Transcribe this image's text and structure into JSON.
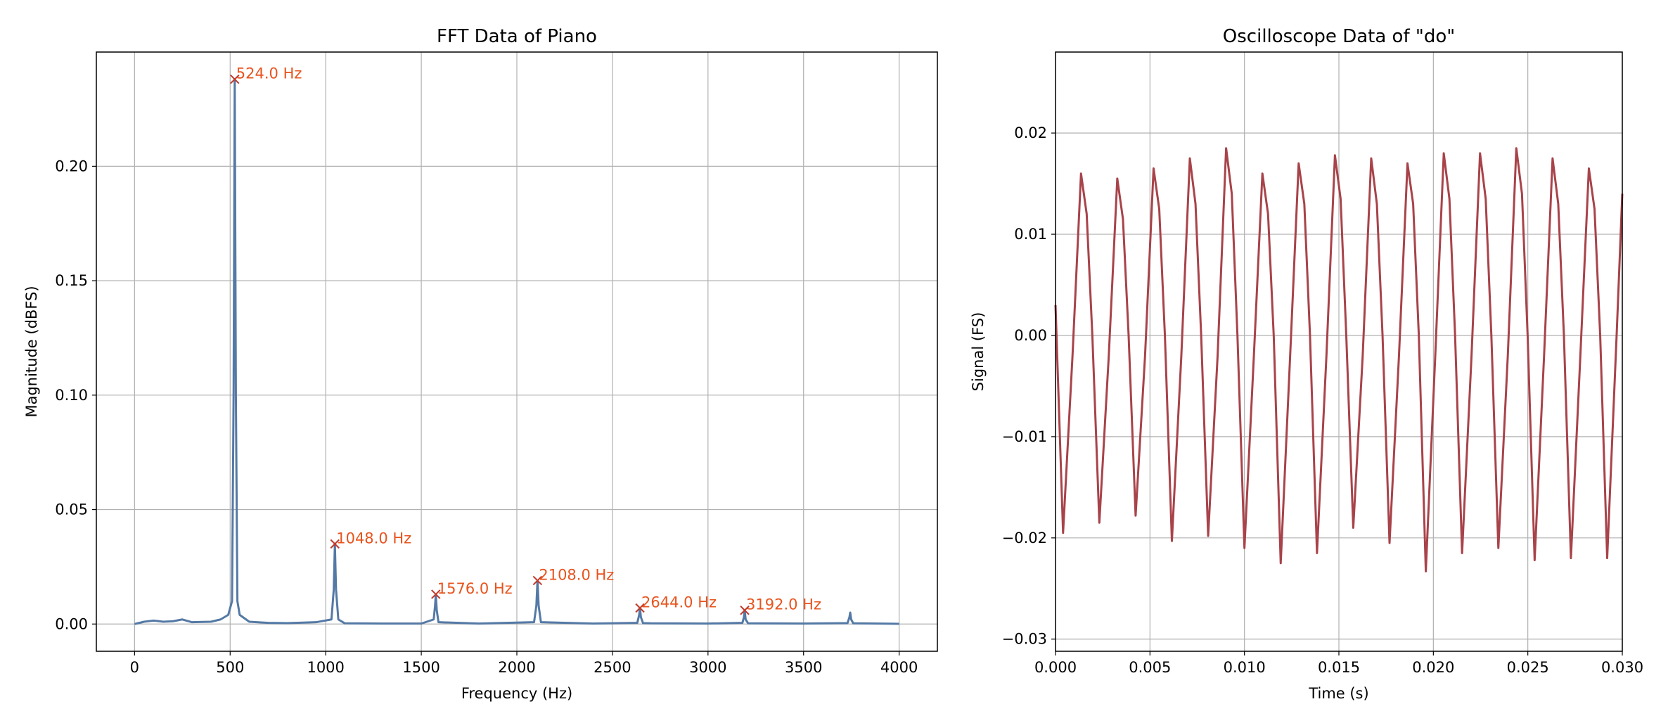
{
  "chart_data": [
    {
      "type": "line",
      "title": "FFT Data of Piano",
      "xlabel": "Frequency (Hz)",
      "ylabel": "Magnitude (dBFS)",
      "xlim": [
        -200,
        4200
      ],
      "ylim": [
        -0.0119,
        0.2499
      ],
      "grid": true,
      "xticks": [
        0,
        500,
        1000,
        1500,
        2000,
        2500,
        3000,
        3500,
        4000
      ],
      "yticks": [
        {
          "value": 0,
          "label": "0.00"
        },
        {
          "value": 0.05,
          "label": "0.05"
        },
        {
          "value": 0.1,
          "label": "0.10"
        },
        {
          "value": 0.15,
          "label": "0.15"
        },
        {
          "value": 0.2,
          "label": "0.20"
        }
      ],
      "series": [
        {
          "color": "#5479a5",
          "x": [
            0,
            50,
            100,
            150,
            200,
            250,
            300,
            400,
            450,
            490,
            510,
            518,
            524,
            530,
            538,
            550,
            600,
            700,
            800,
            950,
            1030,
            1042,
            1048,
            1054,
            1066,
            1100,
            1300,
            1500,
            1565,
            1572,
            1576,
            1581,
            1590,
            1800,
            2090,
            2102,
            2108,
            2114,
            2126,
            2400,
            2630,
            2640,
            2644,
            2649,
            2660,
            2700,
            3000,
            3180,
            3188,
            3192,
            3197,
            3210,
            3500,
            3730,
            3740,
            3744,
            3749,
            3760,
            4000
          ],
          "values": [
            0,
            0.001,
            0.0015,
            0.001,
            0.0012,
            0.002,
            0.0008,
            0.001,
            0.002,
            0.004,
            0.01,
            0.1,
            0.238,
            0.1,
            0.01,
            0.004,
            0.001,
            0.0005,
            0.0004,
            0.0008,
            0.002,
            0.015,
            0.035,
            0.015,
            0.002,
            0.0003,
            0.0002,
            0.0002,
            0.002,
            0.008,
            0.013,
            0.006,
            0.0008,
            0.0002,
            0.0008,
            0.008,
            0.019,
            0.008,
            0.0008,
            0.0002,
            0.0005,
            0.004,
            0.007,
            0.003,
            0.0004,
            0.0003,
            0.0002,
            0.0005,
            0.003,
            0.006,
            0.002,
            0.0003,
            0.0002,
            0.0004,
            0.003,
            0.005,
            0.002,
            0.0003,
            0.0001
          ]
        }
      ],
      "marker_color": "#c0392b",
      "annotation_color": "#e8541e",
      "annotations": [
        {
          "x": 524,
          "y": 0.238,
          "text": "524.0 Hz"
        },
        {
          "x": 1048,
          "y": 0.035,
          "text": "1048.0 Hz"
        },
        {
          "x": 1576,
          "y": 0.013,
          "text": "1576.0 Hz"
        },
        {
          "x": 2108,
          "y": 0.019,
          "text": "2108.0 Hz"
        },
        {
          "x": 2644,
          "y": 0.007,
          "text": "2644.0 Hz"
        },
        {
          "x": 3192,
          "y": 0.006,
          "text": "3192.0 Hz"
        }
      ]
    },
    {
      "type": "line",
      "title": "Oscilloscope Data of \"do\"",
      "xlabel": "Time (s)",
      "ylabel": "Signal (FS)",
      "xlim": [
        0,
        0.03
      ],
      "ylim": [
        -0.0312,
        0.028
      ],
      "grid": true,
      "xticks": [
        {
          "value": 0,
          "label": "0.000"
        },
        {
          "value": 0.005,
          "label": "0.005"
        },
        {
          "value": 0.01,
          "label": "0.010"
        },
        {
          "value": 0.015,
          "label": "0.015"
        },
        {
          "value": 0.02,
          "label": "0.020"
        },
        {
          "value": 0.025,
          "label": "0.025"
        },
        {
          "value": 0.03,
          "label": "0.030"
        }
      ],
      "yticks": [
        {
          "value": -0.03,
          "label": "−0.03"
        },
        {
          "value": -0.02,
          "label": "−0.02"
        },
        {
          "value": -0.01,
          "label": "−0.01"
        },
        {
          "value": 0,
          "label": "0.00"
        },
        {
          "value": 0.01,
          "label": "0.01"
        },
        {
          "value": 0.02,
          "label": "0.02"
        }
      ],
      "series": [
        {
          "color": "#a8434a",
          "x": [
            0,
            0.0004,
            0.0009,
            0.00135,
            0.00165,
            0.00195,
            0.00232,
            0.00282,
            0.00327,
            0.00357,
            0.00387,
            0.00424,
            0.00474,
            0.00519,
            0.00549,
            0.00579,
            0.00616,
            0.00666,
            0.00711,
            0.00741,
            0.00771,
            0.00808,
            0.00858,
            0.00903,
            0.00933,
            0.00963,
            0.01,
            0.0105,
            0.01095,
            0.01125,
            0.01155,
            0.01192,
            0.01242,
            0.01287,
            0.01317,
            0.01347,
            0.01384,
            0.01434,
            0.01479,
            0.01509,
            0.01539,
            0.01576,
            0.01626,
            0.01671,
            0.01701,
            0.01731,
            0.01768,
            0.01818,
            0.01863,
            0.01893,
            0.01923,
            0.0196,
            0.0201,
            0.02055,
            0.02085,
            0.02115,
            0.02152,
            0.02202,
            0.02247,
            0.02277,
            0.02307,
            0.02344,
            0.02394,
            0.02439,
            0.02469,
            0.02499,
            0.02536,
            0.02586,
            0.02631,
            0.02661,
            0.02691,
            0.02728,
            0.02778,
            0.02823,
            0.02853,
            0.02883,
            0.0292,
            0.0297,
            0.03
          ],
          "values": [
            0.003,
            -0.0195,
            -0.002,
            0.016,
            0.012,
            0,
            -0.0185,
            -0.002,
            0.0155,
            0.0115,
            0,
            -0.0178,
            -0.002,
            0.0165,
            0.0125,
            0,
            -0.0203,
            -0.002,
            0.0175,
            0.013,
            0,
            -0.0198,
            -0.002,
            0.0185,
            0.014,
            0,
            -0.021,
            -0.002,
            0.016,
            0.012,
            0,
            -0.0225,
            -0.002,
            0.017,
            0.013,
            0,
            -0.0215,
            -0.002,
            0.0178,
            0.0135,
            0,
            -0.019,
            -0.002,
            0.0175,
            0.013,
            0,
            -0.0205,
            -0.002,
            0.017,
            0.013,
            0,
            -0.0233,
            -0.002,
            0.018,
            0.0135,
            0,
            -0.0215,
            -0.002,
            0.018,
            0.0135,
            0,
            -0.021,
            -0.002,
            0.0185,
            0.014,
            0,
            -0.0222,
            -0.002,
            0.0175,
            0.013,
            0,
            -0.022,
            -0.002,
            0.0165,
            0.0125,
            0,
            -0.022,
            0,
            0.014
          ]
        }
      ]
    }
  ]
}
